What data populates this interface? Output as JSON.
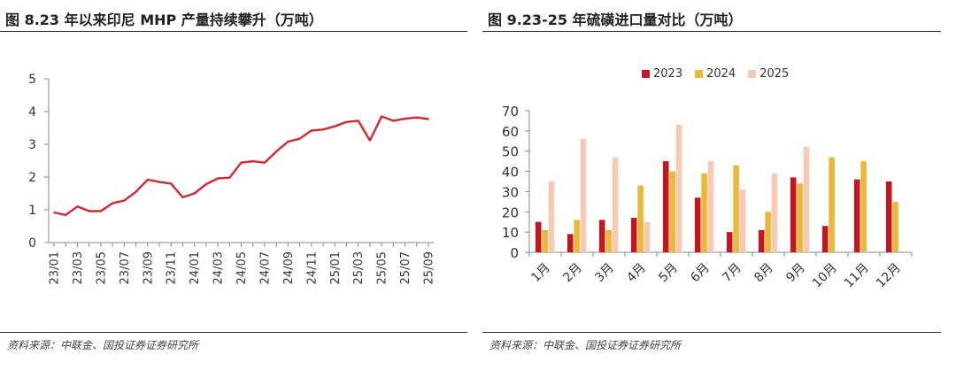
{
  "left_panel": {
    "title": "图 8.23 年以来印尼 MHP 产量持续攀升（万吨）",
    "source": "资料来源：中联金、国投证券证券研究所"
  },
  "right_panel": {
    "title": "图 9.23-25 年硫磺进口量对比（万吨）",
    "source": "资料来源：中联金、国投证券证券研究所"
  },
  "colors": {
    "line": "#d9252f",
    "s2023": "#c8141e",
    "s2024": "#e8b93a",
    "s2025": "#f8c9b2",
    "axis": "#888888"
  },
  "chart_data": [
    {
      "type": "line",
      "title": "图 8.23 年以来印尼 MHP 产量持续攀升（万吨）",
      "xlabel": "",
      "ylabel": "",
      "ylim": [
        0,
        5
      ],
      "yticks": [
        "0",
        "1",
        "2",
        "3",
        "4",
        "5"
      ],
      "grid": false,
      "x_tick_labels": [
        "23/01",
        "23/03",
        "23/05",
        "23/07",
        "23/09",
        "23/11",
        "24/01",
        "24/03",
        "24/05",
        "24/07",
        "24/09",
        "24/11",
        "25/01",
        "25/03",
        "25/05",
        "25/07",
        "25/09"
      ],
      "x": [
        "23/01",
        "23/02",
        "23/03",
        "23/04",
        "23/05",
        "23/06",
        "23/07",
        "23/08",
        "23/09",
        "23/10",
        "23/11",
        "23/12",
        "24/01",
        "24/02",
        "24/03",
        "24/04",
        "24/05",
        "24/06",
        "24/07",
        "24/08",
        "24/09",
        "24/10",
        "24/11",
        "24/12",
        "25/01",
        "25/02",
        "25/03",
        "25/04",
        "25/05",
        "25/06",
        "25/07",
        "25/08",
        "25/09"
      ],
      "series": [
        {
          "values": [
            0.92,
            0.84,
            1.1,
            0.96,
            0.96,
            1.2,
            1.28,
            1.55,
            1.92,
            1.85,
            1.8,
            1.38,
            1.5,
            1.78,
            1.96,
            1.98,
            2.44,
            2.48,
            2.44,
            2.78,
            3.08,
            3.17,
            3.42,
            3.45,
            3.55,
            3.68,
            3.72,
            3.12,
            3.85,
            3.72,
            3.78,
            3.82,
            3.77
          ]
        }
      ]
    },
    {
      "type": "bar",
      "title": "图 9.23-25 年硫磺进口量对比（万吨）",
      "xlabel": "",
      "ylabel": "",
      "ylim": [
        0,
        70
      ],
      "yticks": [
        "0",
        "10",
        "20",
        "30",
        "40",
        "50",
        "60",
        "70"
      ],
      "grid": false,
      "legend_position": "top",
      "categories": [
        "1月",
        "2月",
        "3月",
        "4月",
        "5月",
        "6月",
        "7月",
        "8月",
        "9月",
        "10月",
        "11月",
        "12月"
      ],
      "series": [
        {
          "name": "2023",
          "values": [
            15,
            9,
            16,
            17,
            45,
            27,
            10,
            11,
            37,
            13,
            36,
            35
          ]
        },
        {
          "name": "2024",
          "values": [
            11,
            16,
            11,
            33,
            40,
            39,
            43,
            20,
            34,
            47,
            45,
            25
          ]
        },
        {
          "name": "2025",
          "values": [
            35,
            56,
            47,
            15,
            63,
            45,
            31,
            39,
            52,
            null,
            null,
            null
          ]
        }
      ]
    }
  ]
}
